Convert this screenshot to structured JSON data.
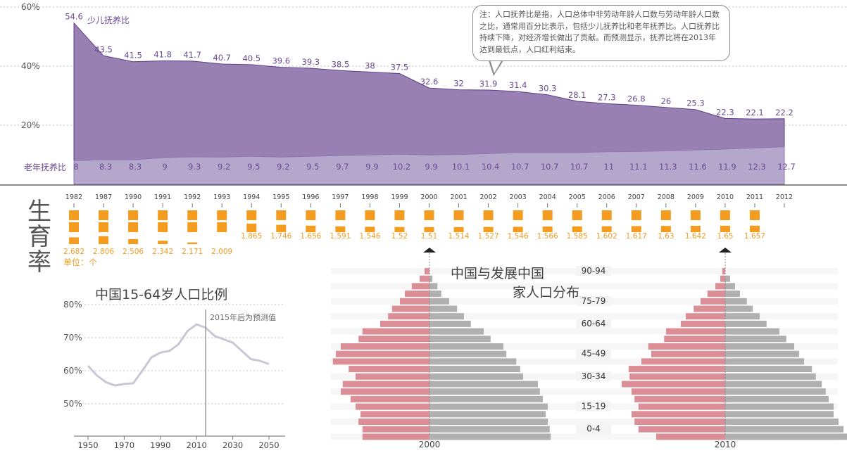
{
  "colors": {
    "child": "#9880b2",
    "child_text": "#6a4a93",
    "old": "#b5a6cc",
    "fert": "#f39c1f",
    "male": "#dc8e97",
    "female": "#b0b0b0",
    "line": "#c8c8d4"
  },
  "dependency": {
    "years": [
      "1982",
      "1987",
      "1990",
      "1991",
      "1992",
      "1993",
      "1994",
      "1995",
      "1996",
      "1997",
      "1998",
      "1999",
      "2000",
      "2001",
      "2002",
      "2003",
      "2004",
      "2005",
      "2006",
      "2007",
      "2008",
      "2009",
      "2010",
      "2011",
      "2012"
    ],
    "y_ticks": [
      "60%",
      "40%",
      "20%"
    ],
    "child_label": "少儿抚养比",
    "old_label": "老年抚养比",
    "note": "注：人口抚养比是指，人口总体中非劳动年龄人口数与劳动年龄人口数之比，通常用百分比表示，包括少儿抚养比和老年抚养比。人口抚养比持续下降，对经济增长做出了贡献。而预测显示，抚养比将在2013年达到最低点，人口红利结束。"
  },
  "chart_data": [
    {
      "type": "area",
      "title": "",
      "xlabel": "",
      "ylabel": "",
      "ylim": [
        0,
        60
      ],
      "categories": [
        "1982",
        "1987",
        "1990",
        "1991",
        "1992",
        "1993",
        "1994",
        "1995",
        "1996",
        "1997",
        "1998",
        "1999",
        "2000",
        "2001",
        "2002",
        "2003",
        "2004",
        "2005",
        "2006",
        "2007",
        "2008",
        "2009",
        "2010",
        "2011",
        "2012"
      ],
      "series": [
        {
          "name": "少儿抚养比",
          "values": [
            "54.6",
            "43.5",
            "41.5",
            "41.8",
            "41.7",
            "40.7",
            "40.5",
            "39.6",
            "39.3",
            "38.5",
            "38",
            "37.5",
            "32.6",
            "32",
            "31.9",
            "31.4",
            "30.3",
            "28.1",
            "27.3",
            "26.8",
            "26",
            "25.3",
            "22.3",
            "22.1",
            "22.2"
          ]
        },
        {
          "name": "老年抚养比",
          "values": [
            "8",
            "8.3",
            "8.3",
            "9",
            "9.3",
            "9.2",
            "9.5",
            "9.2",
            "9.5",
            "9.7",
            "9.9",
            "10.2",
            "9.9",
            "10.1",
            "10.4",
            "10.7",
            "10.7",
            "10.7",
            "11",
            "11.1",
            "11.3",
            "11.6",
            "11.9",
            "12.3",
            "12.7"
          ]
        }
      ]
    },
    {
      "type": "bar",
      "title": "生育率",
      "unit": "单位：个",
      "categories": [
        "1982",
        "1987",
        "1990",
        "1991",
        "1992",
        "1993",
        "1994",
        "1995",
        "1996",
        "1997",
        "1998",
        "1999",
        "2000",
        "2001",
        "2002",
        "2003",
        "2004",
        "2005",
        "2006",
        "2007",
        "2008",
        "2009",
        "2010",
        "2011"
      ],
      "values": [
        "2.682",
        "2.806",
        "2.506",
        "2.342",
        "2.171",
        "2.009",
        "1.865",
        "1.746",
        "1.656",
        "1.591",
        "1.546",
        "1.52",
        "1.51",
        "1.514",
        "1.527",
        "1.546",
        "1.566",
        "1.585",
        "1.602",
        "1.617",
        "1.63",
        "1.642",
        "1.65",
        "1.657"
      ]
    },
    {
      "type": "line",
      "title": "中国15-64岁人口比例",
      "annotation": "2015年后为预测值",
      "ylim": [
        40,
        80
      ],
      "y_ticks": [
        "80%",
        "70%",
        "60%",
        "50%"
      ],
      "x_ticks": [
        "1950",
        "1970",
        "1990",
        "2010",
        "2030",
        "2050"
      ],
      "x": [
        1950,
        1955,
        1960,
        1965,
        1970,
        1975,
        1980,
        1985,
        1990,
        1995,
        2000,
        2005,
        2010,
        2015,
        2020,
        2025,
        2030,
        2035,
        2040,
        2045,
        2050
      ],
      "values": [
        61.5,
        58.5,
        56.5,
        55.5,
        56,
        56.2,
        60,
        64,
        65.5,
        66,
        68,
        72,
        74,
        73,
        70.5,
        69.5,
        68.5,
        66,
        63.5,
        63,
        62
      ],
      "marker_x": 2015
    },
    {
      "type": "bar",
      "title": "中国与发展中国家人口分布",
      "age_labels": [
        "90-94",
        "75-79",
        "60-64",
        "45-49",
        "30-34",
        "15-19",
        "0-4"
      ],
      "axis_labels": [
        "2000",
        "2010"
      ],
      "groups": [
        {
          "name": "2000",
          "left": [
            5,
            10,
            18,
            25,
            30,
            38,
            42,
            50,
            68,
            72,
            90,
            95,
            98,
            82,
            75,
            88,
            90,
            80,
            75,
            70,
            72,
            68,
            68
          ],
          "right": [
            0,
            3,
            8,
            12,
            20,
            28,
            35,
            42,
            55,
            62,
            75,
            78,
            88,
            92,
            95,
            110,
            112,
            115,
            120,
            118,
            120,
            122,
            123
          ]
        },
        {
          "name": "2010",
          "left": [
            3,
            5,
            10,
            18,
            25,
            32,
            40,
            45,
            60,
            62,
            78,
            75,
            85,
            98,
            97,
            105,
            95,
            92,
            88,
            95,
            92,
            88,
            70
          ],
          "right": [
            0,
            5,
            10,
            15,
            22,
            28,
            35,
            42,
            55,
            62,
            70,
            75,
            80,
            88,
            92,
            98,
            102,
            105,
            110,
            110,
            115,
            120,
            125
          ]
        }
      ]
    }
  ]
}
